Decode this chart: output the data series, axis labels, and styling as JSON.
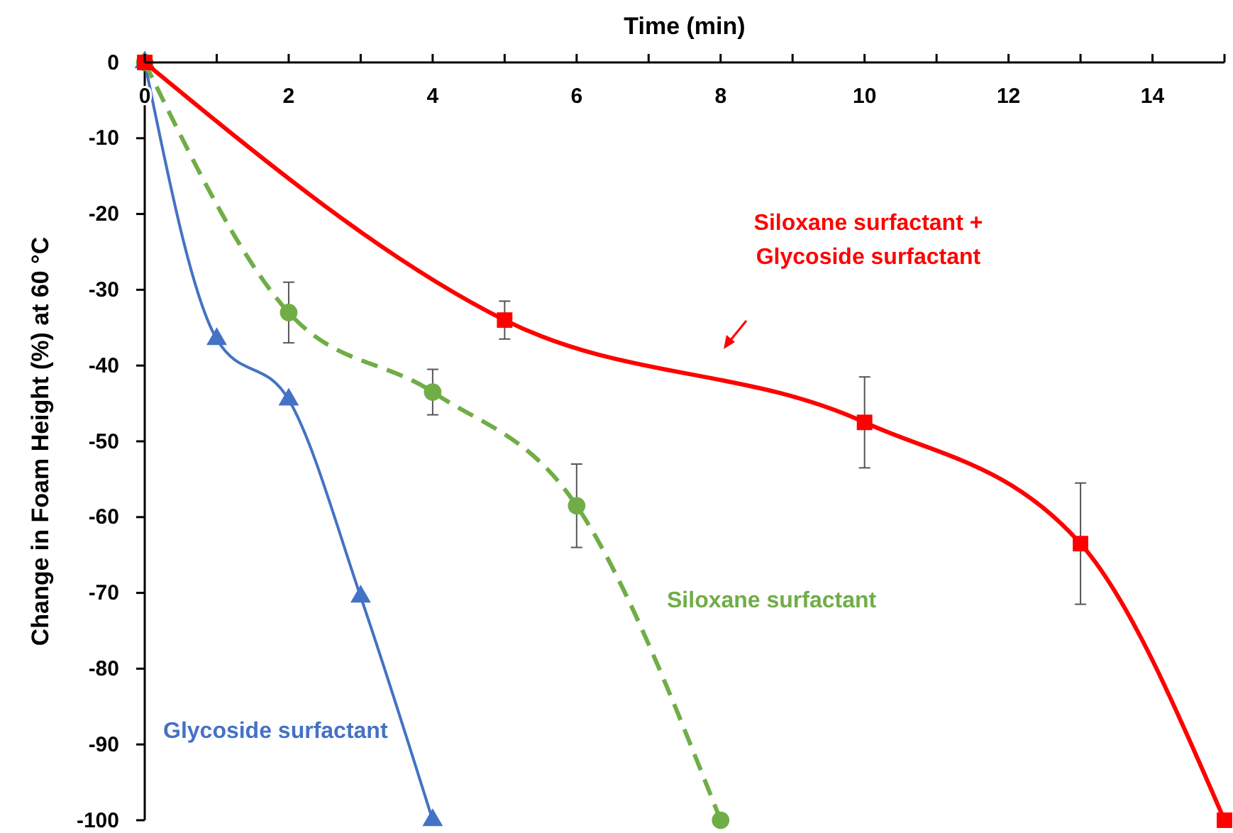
{
  "chart_data": {
    "type": "line",
    "xlabel": "Time (min)",
    "ylabel": "Change in Foam Height (%) at 60 °C",
    "xlim": [
      0,
      15
    ],
    "xticks": [
      0,
      {
        "value": 1,
        "label": null
      },
      2,
      {
        "value": 3,
        "label": null
      },
      4,
      {
        "value": 5,
        "label": null
      },
      6,
      {
        "value": 7,
        "label": null
      },
      8,
      {
        "value": 9,
        "label": null
      },
      10,
      {
        "value": 11,
        "label": null
      },
      12,
      {
        "value": 13,
        "label": null
      },
      14,
      {
        "value": 15,
        "label": null
      }
    ],
    "ylim": [
      -100,
      0
    ],
    "yticks": [
      0,
      -10,
      -20,
      -30,
      -40,
      -50,
      -60,
      -70,
      -80,
      -90,
      -100
    ],
    "grid": false,
    "series": [
      {
        "name": "Glycoside surfactant",
        "color": "#4472c4",
        "marker": "triangle",
        "line_style": "solid",
        "x": [
          0,
          1,
          2,
          3,
          4
        ],
        "values": [
          0,
          -36.5,
          -44.5,
          -70.5,
          -100
        ]
      },
      {
        "name": "Siloxane surfactant",
        "color": "#70ad47",
        "marker": "circle",
        "line_style": "dashed",
        "x": [
          0,
          2,
          4,
          6,
          8
        ],
        "values": [
          0,
          -33,
          -43.5,
          -58.5,
          -100
        ],
        "errors": [
          null,
          4,
          3,
          5.5,
          null
        ]
      },
      {
        "name": "Siloxane surfactant + Glycoside surfactant",
        "color": "#ff0000",
        "marker": "square",
        "line_style": "solid",
        "x": [
          0,
          5,
          10,
          13,
          15
        ],
        "values": [
          0,
          -34,
          -47.5,
          -63.5,
          -100
        ],
        "errors": [
          null,
          2.5,
          6,
          8,
          null
        ]
      }
    ]
  }
}
